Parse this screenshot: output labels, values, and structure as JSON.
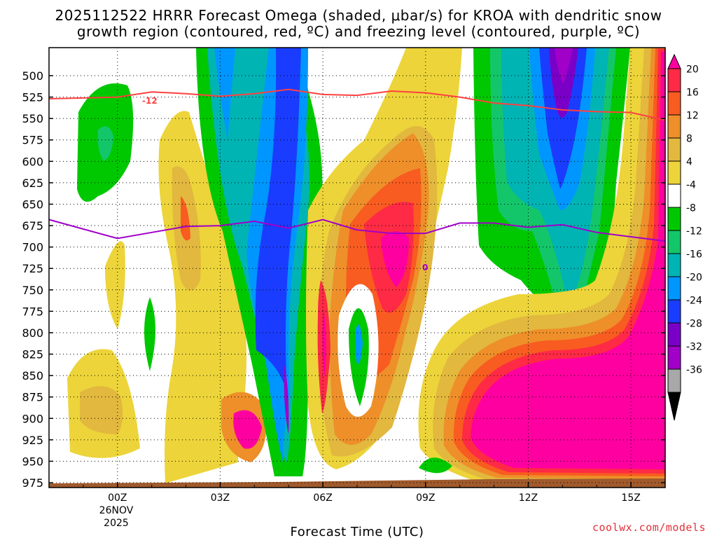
{
  "title_line1": "2025112522 HRRR Forecast Omega (shaded, μbar/s) for KROA with dendritic snow",
  "title_line2": "growth region (contoured, red, ºC) and freezing level (contoured, purple, ºC)",
  "credit": "coolwx.com/models",
  "chart_data": {
    "type": "contour",
    "model": "HRRR",
    "run": "2025112522",
    "site": "KROA",
    "xlabel": "Forecast Time (UTC)",
    "ylabel": "",
    "x_ticks": [
      "00Z",
      "03Z",
      "06Z",
      "09Z",
      "12Z",
      "15Z"
    ],
    "x_date_label": [
      "26NOV",
      "2025"
    ],
    "x_hour_range": [
      -2,
      16
    ],
    "y_ticks": [
      500,
      525,
      550,
      575,
      600,
      625,
      650,
      675,
      700,
      725,
      750,
      775,
      800,
      825,
      850,
      875,
      900,
      925,
      950,
      975
    ],
    "ylim_hpa": [
      980,
      475
    ],
    "grid": true,
    "colorbar": {
      "label_values": [
        20,
        16,
        12,
        8,
        4,
        -4,
        -8,
        -12,
        -16,
        -20,
        -24,
        -28,
        -32,
        -36
      ],
      "colors": [
        "#ff00a0",
        "#ff2a45",
        "#f85c20",
        "#ee8f2a",
        "#e2b83e",
        "#ecd43a",
        "#ffffff",
        "#00c800",
        "#14c66a",
        "#00b4b4",
        "#0096ff",
        "#1a3cff",
        "#7a00c8",
        "#a000c8",
        "#a8a8a8",
        "#000000"
      ]
    },
    "red_contour": {
      "label": "-12",
      "points": [
        [
          -2,
          527
        ],
        [
          0,
          525
        ],
        [
          1,
          519
        ],
        [
          2,
          521
        ],
        [
          3,
          524
        ],
        [
          4,
          521
        ],
        [
          5,
          516
        ],
        [
          6,
          522
        ],
        [
          7,
          523
        ],
        [
          8,
          518
        ],
        [
          9,
          520
        ],
        [
          10,
          525
        ],
        [
          11,
          532
        ],
        [
          12,
          535
        ],
        [
          13,
          540
        ],
        [
          14,
          542
        ],
        [
          15,
          543
        ],
        [
          16,
          552
        ]
      ]
    },
    "purple_contour": {
      "label": "0",
      "points": [
        [
          -2,
          668
        ],
        [
          0,
          690
        ],
        [
          1,
          683
        ],
        [
          2,
          676
        ],
        [
          3,
          675
        ],
        [
          4,
          670
        ],
        [
          5,
          678
        ],
        [
          6,
          668
        ],
        [
          7,
          680
        ],
        [
          8,
          684
        ],
        [
          9,
          684
        ],
        [
          10,
          672
        ],
        [
          11,
          672
        ],
        [
          12,
          677
        ],
        [
          13,
          674
        ],
        [
          14,
          683
        ],
        [
          15,
          688
        ],
        [
          16,
          693
        ]
      ]
    }
  }
}
